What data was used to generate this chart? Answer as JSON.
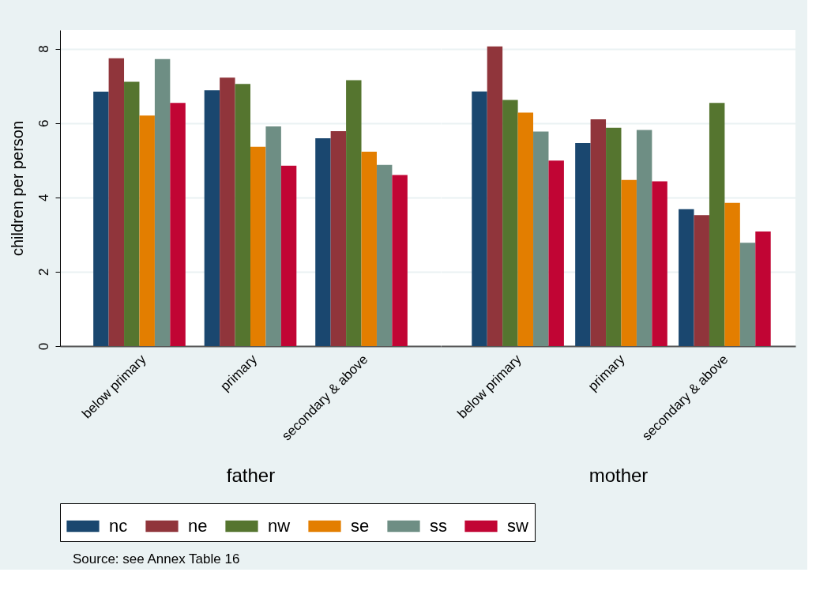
{
  "chart_data": [
    {
      "type": "bar",
      "ylabel": "children per person",
      "xlabel": "father",
      "categories": [
        "below primary",
        "primary",
        "secondary & above"
      ],
      "series": [
        {
          "name": "nc",
          "color": "#1a476f",
          "values": [
            6.84,
            6.88,
            5.59
          ]
        },
        {
          "name": "ne",
          "color": "#90353b",
          "values": [
            7.74,
            7.22,
            5.78
          ]
        },
        {
          "name": "nw",
          "color": "#55752f",
          "values": [
            7.11,
            7.05,
            7.15
          ]
        },
        {
          "name": "se",
          "color": "#e37e00",
          "values": [
            6.2,
            5.36,
            5.23
          ]
        },
        {
          "name": "ss",
          "color": "#6e8e84",
          "values": [
            7.72,
            5.91,
            4.87
          ]
        },
        {
          "name": "sw",
          "color": "#c10534",
          "values": [
            6.54,
            4.85,
            4.6
          ]
        }
      ],
      "ylim": [
        0,
        8.5
      ],
      "yticks": [
        0,
        2,
        4,
        6,
        8
      ],
      "grid": "y",
      "legend": "bottom",
      "annotations": [
        "Source: see Annex Table 16"
      ]
    },
    {
      "type": "bar",
      "xlabel": "mother",
      "categories": [
        "below primary",
        "primary",
        "secondary & above"
      ],
      "series": [
        {
          "name": "nc",
          "color": "#1a476f",
          "values": [
            6.85,
            5.46,
            3.68
          ]
        },
        {
          "name": "ne",
          "color": "#90353b",
          "values": [
            8.06,
            6.1,
            3.52
          ]
        },
        {
          "name": "nw",
          "color": "#55752f",
          "values": [
            6.62,
            5.87,
            6.54
          ]
        },
        {
          "name": "se",
          "color": "#e37e00",
          "values": [
            6.28,
            4.47,
            3.85
          ]
        },
        {
          "name": "ss",
          "color": "#6e8e84",
          "values": [
            5.77,
            5.81,
            2.78
          ]
        },
        {
          "name": "sw",
          "color": "#c10534",
          "values": [
            4.99,
            4.43,
            3.08
          ]
        }
      ],
      "ylim": [
        0,
        8.5
      ],
      "yticks": [
        0,
        2,
        4,
        6,
        8
      ],
      "grid": "y",
      "legend": "bottom",
      "tick_labels": "x"
    }
  ]
}
